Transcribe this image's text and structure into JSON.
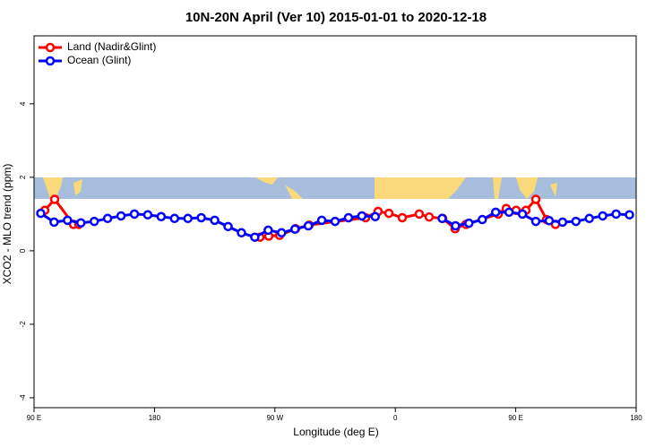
{
  "chart_data": {
    "type": "line",
    "title": "10N-20N April (Ver 10)   2015-01-01 to 2020-12-18",
    "x_label": "Longitude (deg E)",
    "y_label": "XCO2 - MLO trend (ppm)",
    "xlim": [
      90,
      540
    ],
    "xticks": [
      {
        "value": 90,
        "label": "90 E"
      },
      {
        "value": 180,
        "label": "180"
      },
      {
        "value": 270,
        "label": "90 W"
      },
      {
        "value": 360,
        "label": "0"
      },
      {
        "value": 450,
        "label": "90 E"
      },
      {
        "value": 540,
        "label": "180"
      }
    ],
    "ylim": [
      -4.27,
      5.85
    ],
    "yticks": [
      -4,
      -2,
      0,
      2,
      4
    ],
    "legend": "top-left",
    "series": [
      {
        "name": "Land (Nadir&Glint)",
        "color": "#ff0000",
        "x": [
          98,
          105.4,
          119.5,
          123.5,
          null,
          258.8,
          265.4,
          273.5,
          285.5,
          295.6,
          337.8,
          347.1,
          355.2,
          365.2,
          377.9,
          385.3,
          395.4,
          404.7,
          412.8,
          436.9,
          442.9,
          450.3,
          457.6,
          465,
          473,
          479.7
        ],
        "values": [
          1.1,
          1.4,
          0.72,
          0.72,
          null,
          0.37,
          0.4,
          0.42,
          0.6,
          0.7,
          0.9,
          1.07,
          1.02,
          0.9,
          1.0,
          0.92,
          0.88,
          0.6,
          0.72,
          1.0,
          1.15,
          1.1,
          1.1,
          1.4,
          0.85,
          0.72
        ]
      },
      {
        "name": "Ocean (Glint)",
        "color": "#0000ff",
        "x": [
          95,
          105,
          115,
          125,
          135,
          145,
          155,
          165,
          175,
          185,
          195,
          205,
          215,
          225,
          235,
          245,
          255,
          265,
          275,
          285,
          295,
          305,
          315,
          325,
          335,
          345,
          355,
          365,
          375,
          385,
          395,
          405,
          415,
          425,
          435,
          445,
          455,
          465,
          475,
          485,
          495,
          505,
          515,
          525,
          535
        ],
        "values": [
          1.02,
          0.78,
          0.83,
          0.76,
          0.8,
          0.88,
          0.95,
          1.0,
          0.98,
          0.93,
          0.88,
          0.88,
          0.9,
          0.83,
          0.66,
          0.49,
          0.37,
          0.56,
          0.49,
          0.59,
          0.68,
          0.83,
          0.8,
          0.9,
          0.95,
          0.93,
          null,
          null,
          null,
          null,
          0.88,
          0.68,
          0.75,
          0.85,
          1.05,
          1.05,
          1.0,
          0.8,
          0.82,
          0.78,
          0.8,
          0.88,
          0.95,
          1.0,
          0.98
        ]
      }
    ]
  }
}
